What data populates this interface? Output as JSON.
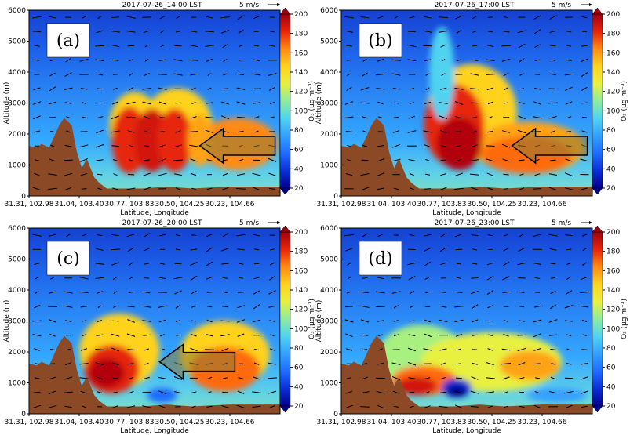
{
  "chart_data": [
    {
      "type": "contour",
      "panel_label": "(a)",
      "title": "2017-07-26_14:00 LST",
      "scale_label": "5 m/s",
      "xlabel": "Latitude, Longitude",
      "ylabel": "Altitude (m)",
      "x_ticks": [
        "31.31, 102.98",
        "31.04, 103.40",
        "30.77, 103.83",
        "30.50, 104.25",
        "30.23, 104.66"
      ],
      "y_ticks": [
        "0",
        "1000",
        "2000",
        "3000",
        "4000",
        "5000",
        "6000"
      ],
      "ylim": [
        0,
        6000
      ],
      "colorbar_label": "O₃ (μg m⁻³)",
      "colorbar_ticks": [
        "20",
        "40",
        "60",
        "80",
        "100",
        "120",
        "140",
        "160",
        "180",
        "200"
      ],
      "arrow": "large arrow pointing westward at ~1500 m"
    },
    {
      "type": "contour",
      "panel_label": "(b)",
      "title": "2017-07-26_17:00 LST",
      "scale_label": "5 m/s",
      "xlabel": "Latitude, Longitude",
      "ylabel": "Altitude (m)",
      "x_ticks": [
        "31.31, 102.98",
        "31.04, 103.40",
        "30.77, 103.83",
        "30.50, 104.25",
        "30.23, 104.66"
      ],
      "y_ticks": [
        "0",
        "1000",
        "2000",
        "3000",
        "4000",
        "5000",
        "6000"
      ],
      "ylim": [
        0,
        6000
      ],
      "colorbar_label": "O₃ (μg m⁻³)",
      "colorbar_ticks": [
        "20",
        "40",
        "60",
        "80",
        "100",
        "120",
        "140",
        "160",
        "180",
        "200"
      ],
      "arrow": "large arrow pointing westward at ~1500 m"
    },
    {
      "type": "contour",
      "panel_label": "(c)",
      "title": "2017-07-26_20:00 LST",
      "scale_label": "5 m/s",
      "xlabel": "Latitude, Longitude",
      "ylabel": "Altitude (m)",
      "x_ticks": [
        "31.31, 102.98",
        "31.04, 103.40",
        "30.77, 103.83",
        "30.50, 104.25",
        "30.23, 104.66"
      ],
      "y_ticks": [
        "0",
        "1000",
        "2000",
        "3000",
        "4000",
        "5000",
        "6000"
      ],
      "ylim": [
        0,
        6000
      ],
      "colorbar_label": "O₃ (μg m⁻³)",
      "colorbar_ticks": [
        "20",
        "40",
        "60",
        "80",
        "100",
        "120",
        "140",
        "160",
        "180",
        "200"
      ],
      "arrow": "large arrow pointing westward at ~1600 m"
    },
    {
      "type": "contour",
      "panel_label": "(d)",
      "title": "2017-07-26_23:00 LST",
      "scale_label": "5 m/s",
      "xlabel": "Latitude, Longitude",
      "ylabel": "Altitude (m)",
      "x_ticks": [
        "31.31, 102.98",
        "31.04, 103.40",
        "30.77, 103.83",
        "30.50, 104.25",
        "30.23, 104.66"
      ],
      "y_ticks": [
        "0",
        "1000",
        "2000",
        "3000",
        "4000",
        "5000",
        "6000"
      ],
      "ylim": [
        0,
        6000
      ],
      "colorbar_label": "O₃ (μg m⁻³)",
      "colorbar_ticks": [
        "20",
        "40",
        "60",
        "80",
        "100",
        "120",
        "140",
        "160",
        "180",
        "200"
      ],
      "arrow": "none"
    }
  ],
  "colors": {
    "terrain": "#8B4A25",
    "colormap": [
      "#00008b",
      "#0c2fd6",
      "#1f6cff",
      "#34a0ff",
      "#4fd3f0",
      "#6ee8c8",
      "#a8f080",
      "#e8f040",
      "#ffd21f",
      "#ffa319",
      "#ff6a10",
      "#e6260a",
      "#b3000b"
    ]
  }
}
